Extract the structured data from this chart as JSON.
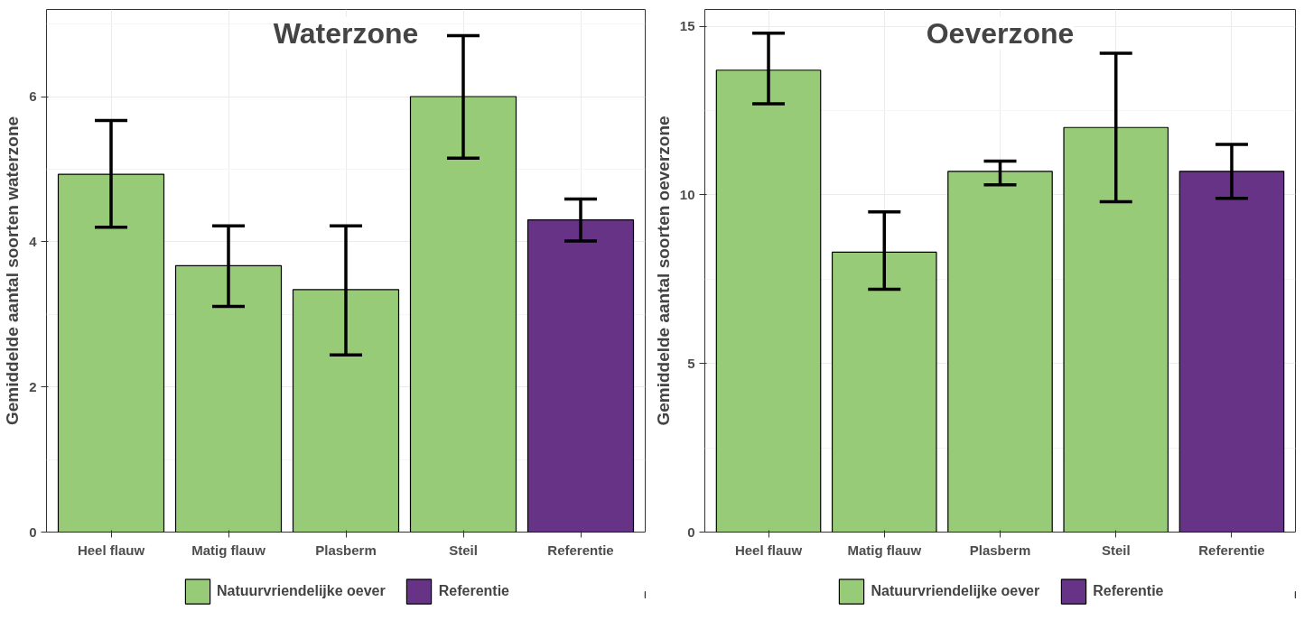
{
  "chart_data": [
    {
      "type": "bar",
      "title": "Waterzone",
      "ylabel": "Gemiddelde aantal soorten waterzone",
      "categories": [
        "Heel flauw",
        "Matig flauw",
        "Plasberm",
        "Steil",
        "Referentie"
      ],
      "series": [
        {
          "name": "Natuurvriendelijke oever",
          "color": "#98cb78",
          "values": [
            4.93,
            3.67,
            3.34,
            6.0,
            null
          ],
          "errors": [
            [
              4.2,
              5.67
            ],
            [
              3.11,
              4.22
            ],
            [
              2.44,
              4.22
            ],
            [
              5.15,
              6.84
            ],
            null
          ]
        },
        {
          "name": "Referentie",
          "color": "#663387",
          "values": [
            null,
            null,
            null,
            null,
            4.3
          ],
          "errors": [
            null,
            null,
            null,
            null,
            [
              4.01,
              4.59
            ]
          ]
        }
      ],
      "ylim": [
        0,
        7.2
      ],
      "yticks": [
        0,
        2,
        4,
        6
      ],
      "grid": true,
      "legend": "bottom"
    },
    {
      "type": "bar",
      "title": "Oeverzone",
      "ylabel": "Gemiddelde aantal soorten oeverzone",
      "categories": [
        "Heel flauw",
        "Matig flauw",
        "Plasberm",
        "Steil",
        "Referentie"
      ],
      "series": [
        {
          "name": "Natuurvriendelijke oever",
          "color": "#98cb78",
          "values": [
            13.7,
            8.3,
            10.7,
            12.0,
            null
          ],
          "errors": [
            [
              12.7,
              14.8
            ],
            [
              7.2,
              9.5
            ],
            [
              10.3,
              11.0
            ],
            [
              9.8,
              14.2
            ],
            null
          ]
        },
        {
          "name": "Referentie",
          "color": "#663387",
          "values": [
            null,
            null,
            null,
            null,
            10.7
          ],
          "errors": [
            null,
            null,
            null,
            null,
            [
              9.9,
              11.5
            ]
          ]
        }
      ],
      "ylim": [
        0,
        15.5
      ],
      "yticks": [
        0,
        5,
        10,
        15
      ],
      "grid": true,
      "legend": "bottom"
    }
  ]
}
